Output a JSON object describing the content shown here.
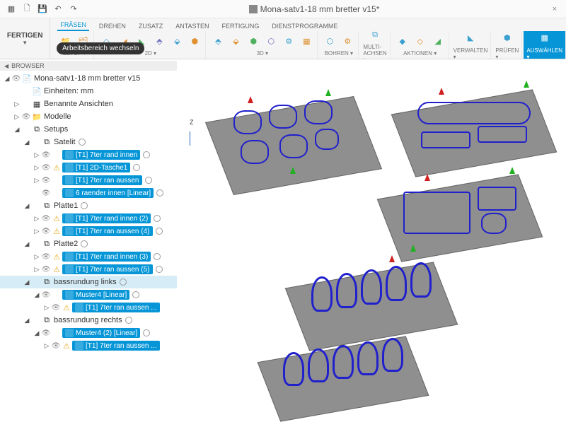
{
  "titlebar": {
    "doc_name": "Mona-satv1-18 mm bretter v15*",
    "close": "×"
  },
  "workspace": {
    "label": "FERTIGEN",
    "tooltip": "Arbeitsbereich wechseln"
  },
  "tabs": [
    "FRÄSEN",
    "DREHEN",
    "ZUSATZ",
    "ANTASTEN",
    "FERTIGUNG",
    "DIENSTPROGRAMME"
  ],
  "active_tab": 0,
  "groups": [
    {
      "label": "SETUP ▾",
      "icons": 2
    },
    {
      "label": "2D ▾",
      "icons": 6
    },
    {
      "label": "3D ▾",
      "icons": 6
    },
    {
      "label": "BOHREN ▾",
      "icons": 2
    },
    {
      "label": "MULTI-ACHSEN ▾",
      "icons": 1
    },
    {
      "label": "AKTIONEN ▾",
      "icons": 3
    },
    {
      "label": "VERWALTEN ▾",
      "icons": 1
    },
    {
      "label": "PRÜFEN ▾",
      "icons": 1
    },
    {
      "label": "AUSWÄHLEN ▾",
      "icons": 1,
      "selected": true
    }
  ],
  "browser_title": "BROWSER",
  "tree": [
    {
      "d": 0,
      "tri": "◢",
      "eye": true,
      "ic": "📄",
      "lbl": "Mona-satv1-18 mm bretter v15"
    },
    {
      "d": 1,
      "tri": "",
      "eye": false,
      "ic": "📄",
      "lbl": "Einheiten: mm"
    },
    {
      "d": 1,
      "tri": "▷",
      "eye": false,
      "ic": "▦",
      "lbl": "Benannte Ansichten"
    },
    {
      "d": 1,
      "tri": "▷",
      "eye": true,
      "ic": "📁",
      "lbl": "Modelle"
    },
    {
      "d": 1,
      "tri": "◢",
      "eye": false,
      "ic": "⧉",
      "lbl": "Setups"
    },
    {
      "d": 2,
      "tri": "◢",
      "eye": false,
      "ic": "⧉",
      "lbl": "Satelit",
      "radio": true
    },
    {
      "d": 3,
      "tri": "▷",
      "eye": true,
      "op": "[T1] 7ter rand innen",
      "radio": true
    },
    {
      "d": 3,
      "tri": "▷",
      "eye": true,
      "warn": true,
      "op": "[T1] 2D-Tasche1",
      "radio": true
    },
    {
      "d": 3,
      "tri": "▷",
      "eye": true,
      "op": "[T1] 7ter ran aussen",
      "radio": true
    },
    {
      "d": 3,
      "tri": "",
      "eye": true,
      "op": "6 raender innen [Linear]",
      "radio": true,
      "pattern": true
    },
    {
      "d": 2,
      "tri": "◢",
      "eye": false,
      "ic": "⧉",
      "lbl": "Platte1",
      "radio": true
    },
    {
      "d": 3,
      "tri": "▷",
      "eye": true,
      "warn": true,
      "op": "[T1] 7ter rand innen (2)",
      "radio": true
    },
    {
      "d": 3,
      "tri": "▷",
      "eye": true,
      "warn": true,
      "op": "[T1] 7ter ran aussen (4)",
      "radio": true
    },
    {
      "d": 2,
      "tri": "◢",
      "eye": false,
      "ic": "⧉",
      "lbl": "Platte2",
      "radio": true
    },
    {
      "d": 3,
      "tri": "▷",
      "eye": true,
      "warn": true,
      "op": "[T1] 7ter rand innen (3)",
      "radio": true
    },
    {
      "d": 3,
      "tri": "▷",
      "eye": true,
      "warn": true,
      "op": "[T1] 7ter ran aussen (5)",
      "radio": true
    },
    {
      "d": 2,
      "tri": "◢",
      "eye": false,
      "ic": "⧉",
      "lbl": "bassrundung links",
      "radio": true,
      "hl": true
    },
    {
      "d": 3,
      "tri": "◢",
      "eye": true,
      "op": "Muster4 [Linear]",
      "radio": true,
      "pattern": true
    },
    {
      "d": 4,
      "tri": "▷",
      "eye": true,
      "warn": true,
      "op": "[T1] 7ter ran aussen ...",
      "radio": false
    },
    {
      "d": 2,
      "tri": "◢",
      "eye": false,
      "ic": "⧉",
      "lbl": "bassrundung rechts",
      "radio": true
    },
    {
      "d": 3,
      "tri": "◢",
      "eye": true,
      "op": "Muster4 (2) [Linear]",
      "radio": true,
      "pattern": true
    },
    {
      "d": 4,
      "tri": "▷",
      "eye": true,
      "warn": true,
      "op": "[T1] 7ter ran aussen ...",
      "radio": false
    }
  ],
  "colors": {
    "accent": "#0696d7",
    "toolpath": "#2020cc",
    "plate": "#8f8f8f"
  },
  "axis": {
    "z_label": "Z"
  }
}
